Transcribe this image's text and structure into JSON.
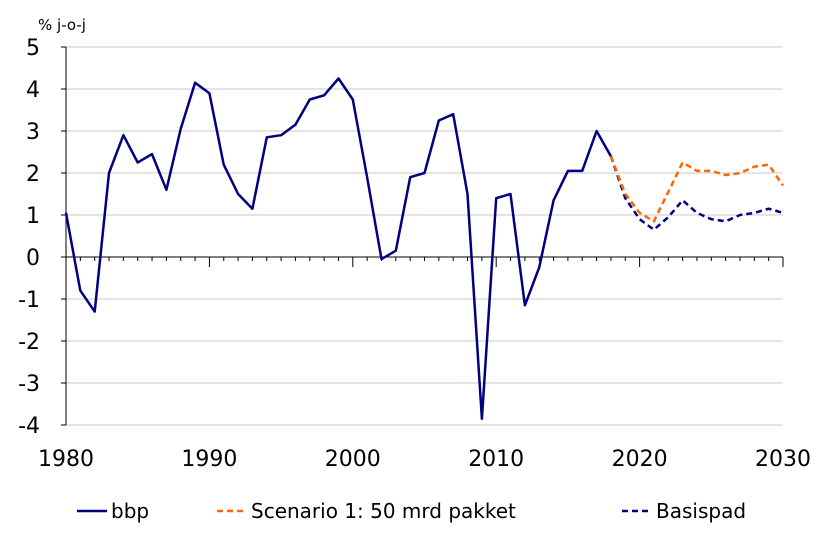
{
  "chart_data": {
    "type": "line",
    "unit_label": "% j-o-j",
    "xlim": [
      1980,
      2030
    ],
    "ylim": [
      -4,
      5
    ],
    "x_ticks": [
      "1980",
      "1990",
      "2000",
      "2010",
      "2020",
      "2030"
    ],
    "y_ticks": [
      "5",
      "4",
      "3",
      "2",
      "1",
      "0",
      "-1",
      "-2",
      "-3",
      "-4"
    ],
    "grid": "horizontal",
    "legend_position": "bottom",
    "series": [
      {
        "name": "bbp",
        "color": "#000080",
        "style": "solid",
        "points": [
          [
            1980,
            1.05
          ],
          [
            1981,
            -0.8
          ],
          [
            1982,
            -1.3
          ],
          [
            1983,
            2.0
          ],
          [
            1984,
            2.9
          ],
          [
            1985,
            2.25
          ],
          [
            1986,
            2.45
          ],
          [
            1987,
            1.6
          ],
          [
            1988,
            3.05
          ],
          [
            1989,
            4.15
          ],
          [
            1990,
            3.9
          ],
          [
            1991,
            2.2
          ],
          [
            1992,
            1.5
          ],
          [
            1993,
            1.15
          ],
          [
            1994,
            2.85
          ],
          [
            1995,
            2.9
          ],
          [
            1996,
            3.15
          ],
          [
            1997,
            3.75
          ],
          [
            1998,
            3.85
          ],
          [
            1999,
            4.25
          ],
          [
            2000,
            3.75
          ],
          [
            2001,
            1.9
          ],
          [
            2002,
            -0.05
          ],
          [
            2003,
            0.15
          ],
          [
            2004,
            1.9
          ],
          [
            2005,
            2.0
          ],
          [
            2006,
            3.25
          ],
          [
            2007,
            3.4
          ],
          [
            2008,
            1.5
          ],
          [
            2009,
            -3.85
          ],
          [
            2010,
            1.4
          ],
          [
            2011,
            1.5
          ],
          [
            2012,
            -1.15
          ],
          [
            2013,
            -0.25
          ],
          [
            2014,
            1.35
          ],
          [
            2015,
            2.05
          ],
          [
            2016,
            2.05
          ],
          [
            2017,
            3.0
          ],
          [
            2018,
            2.4
          ]
        ]
      },
      {
        "name": "Scenario 1: 50 mrd pakket",
        "color": "#ff6600",
        "style": "dashed",
        "points": [
          [
            2018,
            2.4
          ],
          [
            2019,
            1.5
          ],
          [
            2020,
            1.05
          ],
          [
            2021,
            0.85
          ],
          [
            2022,
            1.55
          ],
          [
            2023,
            2.25
          ],
          [
            2024,
            2.05
          ],
          [
            2025,
            2.05
          ],
          [
            2026,
            1.95
          ],
          [
            2027,
            2.0
          ],
          [
            2028,
            2.15
          ],
          [
            2029,
            2.2
          ],
          [
            2030,
            1.7
          ]
        ]
      },
      {
        "name": "Basispad",
        "color": "#000080",
        "style": "dashed",
        "points": [
          [
            2018,
            2.4
          ],
          [
            2019,
            1.4
          ],
          [
            2020,
            0.9
          ],
          [
            2021,
            0.65
          ],
          [
            2022,
            0.95
          ],
          [
            2023,
            1.35
          ],
          [
            2024,
            1.05
          ],
          [
            2025,
            0.9
          ],
          [
            2026,
            0.85
          ],
          [
            2027,
            1.0
          ],
          [
            2028,
            1.05
          ],
          [
            2029,
            1.15
          ],
          [
            2030,
            1.05
          ]
        ]
      }
    ]
  }
}
